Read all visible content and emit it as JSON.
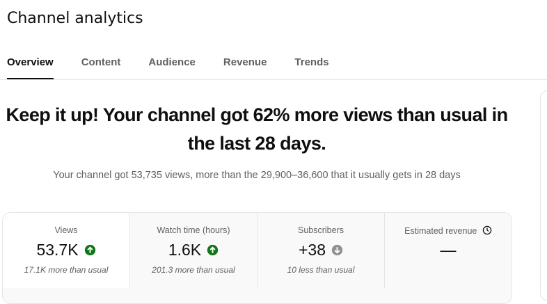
{
  "header": {
    "title": "Channel analytics"
  },
  "tabs": [
    "Overview",
    "Content",
    "Audience",
    "Revenue",
    "Trends"
  ],
  "active_tab": 0,
  "headline": "Keep it up! Your channel got 62% more views than usual in the last 28 days.",
  "summary": "Your channel got 53,735 views, more than the 29,900–36,600 that it usually gets in 28 days",
  "metrics": [
    {
      "label": "Views",
      "value": "53.7K",
      "trend": "up",
      "note": "17.1K more than usual"
    },
    {
      "label": "Watch time (hours)",
      "value": "1.6K",
      "trend": "up",
      "note": "201.3 more than usual"
    },
    {
      "label": "Subscribers",
      "value": "+38",
      "trend": "down",
      "note": "10 less than usual"
    },
    {
      "label": "Estimated revenue",
      "value": "—",
      "info": "clock"
    }
  ]
}
